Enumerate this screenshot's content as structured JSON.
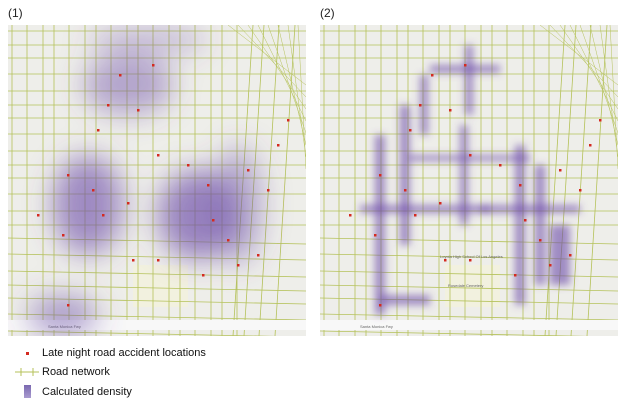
{
  "panels": [
    {
      "label": "(1)",
      "freeway_label": "Santa Monica Fwy"
    },
    {
      "label": "(2)",
      "freeway_label": "Santa Monica Fwy",
      "place_labels": [
        "Loyola High School Of Los Angeles",
        "Rosedale Cemetery"
      ]
    }
  ],
  "legend": {
    "accidents": "Late night road accident locations",
    "roads": "Road network",
    "density": "Calculated density"
  },
  "colors": {
    "accident": "#d42a20",
    "road": "#b5c25a",
    "density": "#6a4aa8",
    "base": "#eeeeea"
  }
}
